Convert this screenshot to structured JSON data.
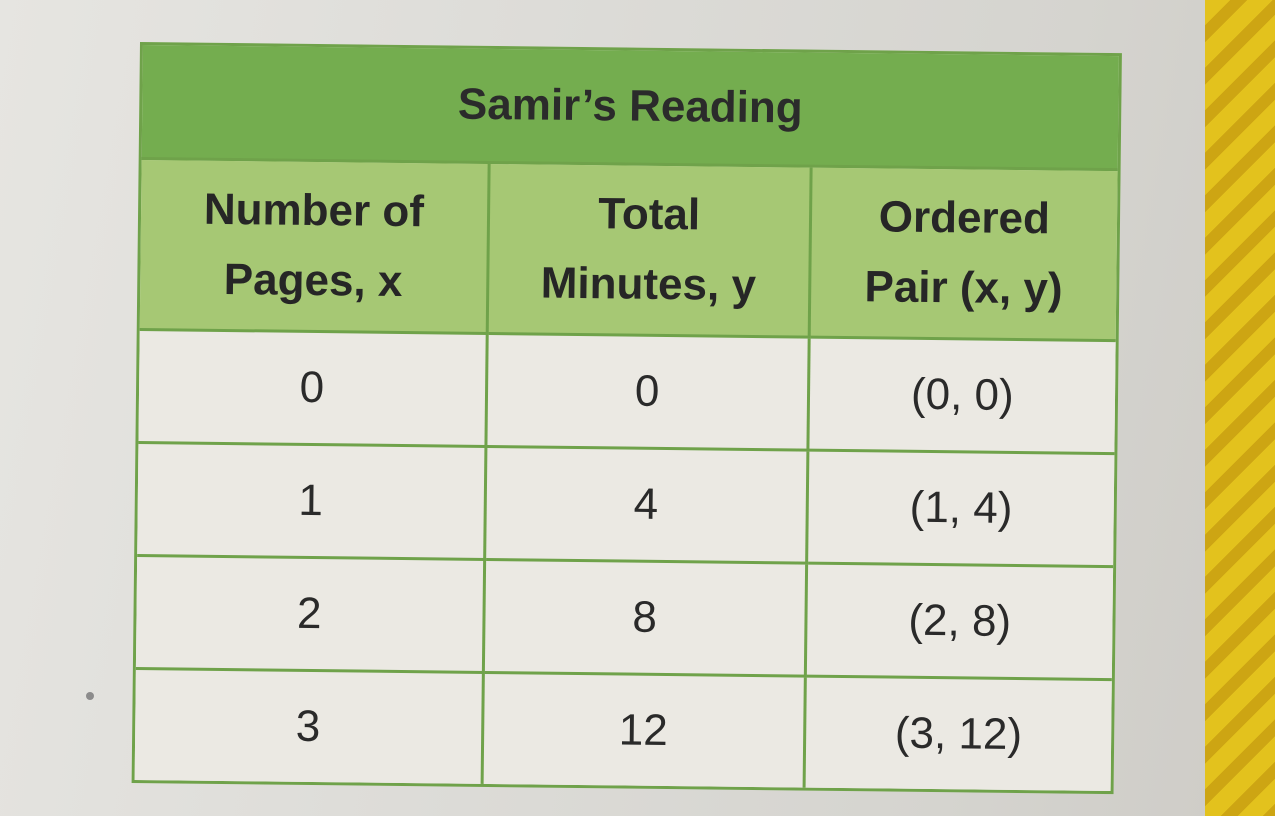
{
  "table": {
    "title": "Samir’s Reading",
    "headers": [
      {
        "line1": "Number of",
        "line2": "Pages, x"
      },
      {
        "line1": "Total",
        "line2": "Minutes, y"
      },
      {
        "line1": "Ordered",
        "line2": "Pair (x, y)"
      }
    ],
    "rows": [
      [
        "0",
        "0",
        "(0, 0)"
      ],
      [
        "1",
        "4",
        "(1, 4)"
      ],
      [
        "2",
        "8",
        "(2, 8)"
      ],
      [
        "3",
        "12",
        "(3, 12)"
      ]
    ]
  },
  "colors": {
    "title_bg": "#74ad4f",
    "header_bg": "#a6c874",
    "border": "#6fa24a",
    "cell_bg": "#ebe9e3",
    "book_edge": "#e3c21d"
  }
}
